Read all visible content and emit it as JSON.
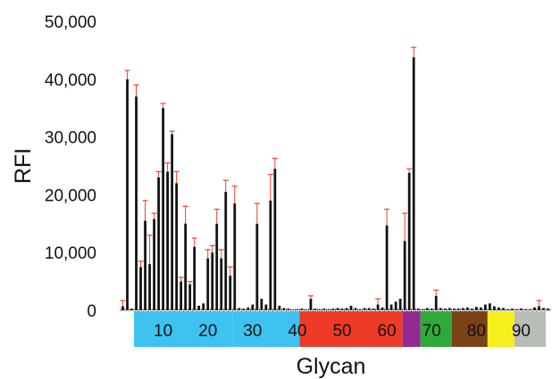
{
  "chart_data": {
    "type": "bar",
    "xlabel": "Glycan",
    "ylabel": "RFI",
    "ylim": [
      0,
      50000
    ],
    "y_ticks": [
      {
        "value": 0,
        "label": "0"
      },
      {
        "value": 10000,
        "label": "10,000"
      },
      {
        "value": 20000,
        "label": "20,000"
      },
      {
        "value": 30000,
        "label": "30,000"
      },
      {
        "value": 40000,
        "label": "40,000"
      },
      {
        "value": 50000,
        "label": "50,000"
      }
    ],
    "x_range": [
      1,
      96
    ],
    "bar_color": "#111111",
    "error_color": "#e8442a",
    "x": [
      1,
      2,
      3,
      4,
      5,
      6,
      7,
      8,
      9,
      10,
      11,
      12,
      13,
      14,
      15,
      16,
      17,
      18,
      19,
      20,
      21,
      22,
      23,
      24,
      25,
      26,
      27,
      28,
      29,
      30,
      31,
      32,
      33,
      34,
      35,
      36,
      37,
      38,
      39,
      40,
      41,
      42,
      43,
      44,
      45,
      46,
      47,
      48,
      49,
      50,
      51,
      52,
      53,
      54,
      55,
      56,
      57,
      58,
      59,
      60,
      61,
      62,
      63,
      64,
      65,
      66,
      67,
      68,
      69,
      70,
      71,
      72,
      73,
      74,
      75,
      76,
      77,
      78,
      79,
      80,
      81,
      82,
      83,
      84,
      85,
      86,
      87,
      88,
      89,
      90,
      91,
      92,
      93,
      94,
      95,
      96
    ],
    "values": [
      700,
      40000,
      300,
      37000,
      7500,
      15500,
      8000,
      15800,
      23000,
      35000,
      24000,
      30500,
      22000,
      5000,
      15000,
      4500,
      11000,
      800,
      1200,
      9000,
      10000,
      15000,
      9000,
      20500,
      6000,
      18500,
      400,
      300,
      500,
      1000,
      15000,
      2000,
      1000,
      19000,
      24500,
      800,
      400,
      300,
      150,
      200,
      300,
      150,
      2000,
      300,
      200,
      300,
      200,
      300,
      400,
      300,
      400,
      800,
      400,
      200,
      400,
      400,
      300,
      1000,
      500,
      14700,
      1000,
      1500,
      2000,
      12000,
      23800,
      43800,
      300,
      200,
      400,
      300,
      2500,
      400,
      300,
      400,
      300,
      300,
      400,
      500,
      300,
      600,
      500,
      1000,
      1200,
      700,
      500,
      400,
      200,
      300,
      200,
      300,
      200,
      200,
      500,
      700,
      400,
      300
    ],
    "errors": [
      1000,
      1500,
      0,
      2000,
      1000,
      3500,
      5000,
      1000,
      1000,
      800,
      1500,
      500,
      2000,
      700,
      3000,
      500,
      1500,
      0,
      0,
      1500,
      1200,
      2500,
      1500,
      2000,
      1500,
      3000,
      0,
      0,
      0,
      0,
      3500,
      0,
      0,
      4500,
      1800,
      0,
      0,
      0,
      0,
      0,
      0,
      0,
      500,
      0,
      0,
      0,
      0,
      0,
      0,
      0,
      0,
      0,
      0,
      0,
      0,
      0,
      0,
      1000,
      0,
      2800,
      0,
      0,
      0,
      4800,
      700,
      1700,
      0,
      0,
      0,
      0,
      1000,
      0,
      0,
      0,
      0,
      0,
      0,
      0,
      0,
      0,
      0,
      0,
      0,
      0,
      0,
      0,
      0,
      0,
      0,
      0,
      0,
      0,
      0,
      1000,
      0,
      0
    ],
    "groups": [
      {
        "label": "10",
        "x_start": 4,
        "x_end": 26,
        "color": "#3ec3f0",
        "label_x": 10
      },
      {
        "label": "20",
        "x_start": 4,
        "x_end": 26,
        "color": "#3ec3f0",
        "label_x": 20
      },
      {
        "label": "30",
        "x_start": 26,
        "x_end": 41,
        "color": "#3ec3f0",
        "label_x": 30
      },
      {
        "label": "40",
        "x_start": 26,
        "x_end": 41,
        "color": "#3ec3f0",
        "label_x": 40
      },
      {
        "label": "50",
        "x_start": 41,
        "x_end": 64,
        "color": "#ee3b25",
        "label_x": 50
      },
      {
        "label": "60",
        "x_start": 41,
        "x_end": 64,
        "color": "#ee3b25",
        "label_x": 60
      },
      {
        "label": "",
        "x_start": 64,
        "x_end": 68,
        "color": "#922a91",
        "label_x": 0
      },
      {
        "label": "70",
        "x_start": 68,
        "x_end": 75,
        "color": "#2eaa3b",
        "label_x": 70
      },
      {
        "label": "80",
        "x_start": 75,
        "x_end": 83,
        "color": "#7a4316",
        "label_x": 80
      },
      {
        "label": "",
        "x_start": 83,
        "x_end": 89,
        "color": "#f7ef1b",
        "label_x": 0
      },
      {
        "label": "90",
        "x_start": 89,
        "x_end": 96,
        "color": "#b8bdb5",
        "label_x": 90
      }
    ]
  }
}
